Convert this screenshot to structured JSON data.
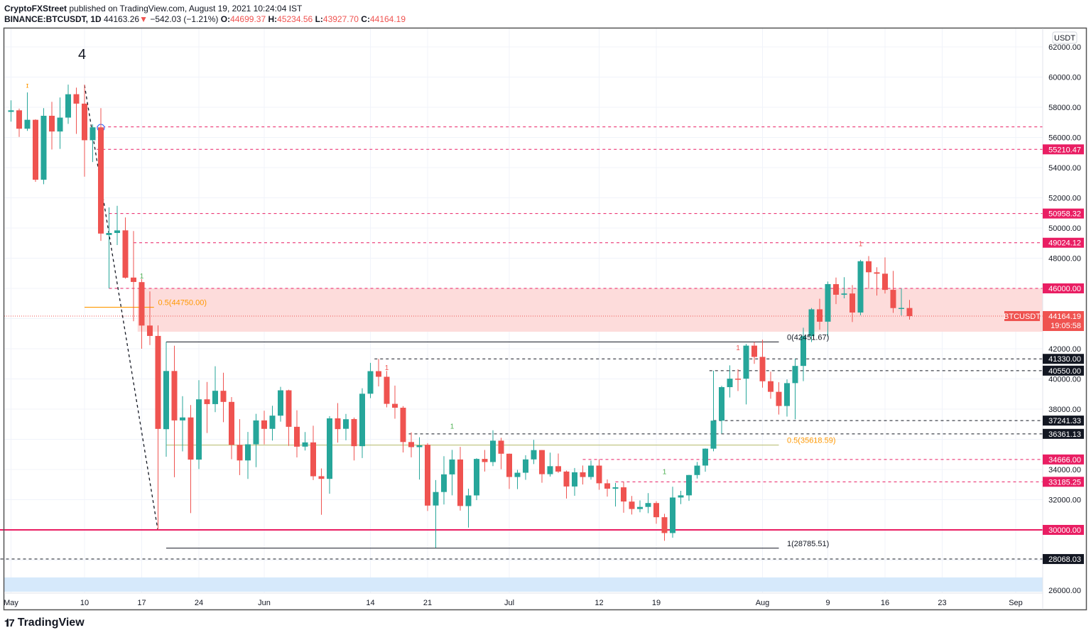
{
  "header": {
    "publisher": "CryptoFXStreet",
    "published_text": "published on TradingView.com, August 19, 2021 10:24:04 IST",
    "symbol": "BINANCE:BTCUSDT, 1D",
    "last": "44163.26",
    "change_arrow": "▼",
    "change": "−542.03 (−1.21%)",
    "o_label": "O:",
    "o": "44699.37",
    "h_label": "H:",
    "h": "45234.56",
    "l_label": "L:",
    "l": "43927.70",
    "c_label": "C:",
    "c": "44164.19"
  },
  "footer": {
    "brand": "TradingView"
  },
  "colors": {
    "up": "#26a69a",
    "down": "#ef5350",
    "level_pink": "#e91e63",
    "level_black": "#131722",
    "zone": "#fddcdb",
    "blue_zone": "#d6e9fb",
    "fib": "#ff9800"
  },
  "chart_data": {
    "type": "candlestick",
    "title": "BINANCE:BTCUSDT, 1D",
    "currency": "USDT",
    "start_date": "2021-04-30",
    "ylim": [
      25500,
      63300
    ],
    "ohlc": [
      [
        53568,
        57963,
        53013,
        57694
      ],
      [
        57694,
        58458,
        57050,
        57797
      ],
      [
        57797,
        57911,
        56035,
        56578
      ],
      [
        56578,
        58981,
        56435,
        57170
      ],
      [
        57169,
        57200,
        53057,
        53200
      ],
      [
        53200,
        57939,
        52900,
        57436
      ],
      [
        57436,
        58360,
        55200,
        56393
      ],
      [
        56393,
        58650,
        55241,
        57314
      ],
      [
        57315,
        59500,
        56900,
        58862
      ],
      [
        58866,
        59300,
        56235,
        58240
      ],
      [
        58240,
        59500,
        53400,
        55816
      ],
      [
        55816,
        56862,
        54370,
        56670
      ],
      [
        56670,
        57939,
        49150,
        49631
      ],
      [
        49537,
        51367,
        46000,
        49670
      ],
      [
        49671,
        51469,
        48870,
        49841
      ],
      [
        49845,
        50700,
        46650,
        46708
      ],
      [
        46716,
        49800,
        43825,
        46426
      ],
      [
        46415,
        46615,
        42001,
        43538
      ],
      [
        43538,
        45800,
        42250,
        42849
      ],
      [
        42850,
        43546,
        30000,
        36690
      ],
      [
        36672,
        42451,
        34850,
        40526
      ],
      [
        40526,
        42200,
        33488,
        37252
      ],
      [
        37253,
        38856,
        35200,
        37449
      ],
      [
        37449,
        38270,
        31111,
        34655
      ],
      [
        34655,
        39920,
        34030,
        38649
      ],
      [
        38649,
        39800,
        36419,
        38333
      ],
      [
        38333,
        40841,
        37800,
        39215
      ],
      [
        39215,
        40411,
        37134,
        38479
      ],
      [
        38479,
        38800,
        34684,
        35633
      ],
      [
        35633,
        37338,
        33632,
        34600
      ],
      [
        34600,
        36488,
        33379,
        35669
      ],
      [
        35669,
        37690,
        34153,
        37252
      ],
      [
        37253,
        37896,
        35666,
        36693
      ],
      [
        36694,
        38225,
        35920,
        37569
      ],
      [
        37568,
        39476,
        37170,
        39246
      ],
      [
        39246,
        39289,
        35567,
        36829
      ],
      [
        36830,
        37925,
        34800,
        35513
      ],
      [
        35516,
        36480,
        35258,
        35796
      ],
      [
        35796,
        36900,
        33300,
        33552
      ],
      [
        33556,
        34068,
        31000,
        33380
      ],
      [
        33380,
        37534,
        32396,
        37388
      ],
      [
        37389,
        38400,
        35782,
        36675
      ],
      [
        36697,
        37680,
        35936,
        37331
      ],
      [
        37340,
        37440,
        34600,
        35546
      ],
      [
        35546,
        39380,
        34757,
        39020
      ],
      [
        39020,
        41064,
        38730,
        40516
      ],
      [
        40516,
        41330,
        39506,
        40144
      ],
      [
        40143,
        40527,
        38116,
        38349
      ],
      [
        38349,
        39560,
        37365,
        38092
      ],
      [
        38092,
        38202,
        35129,
        35820
      ],
      [
        35820,
        36457,
        34803,
        35483
      ],
      [
        35483,
        36137,
        33336,
        35600
      ],
      [
        35641,
        35750,
        31251,
        31608
      ],
      [
        31614,
        33298,
        28805,
        32509
      ],
      [
        32509,
        34881,
        31683,
        33678
      ],
      [
        33675,
        35298,
        32286,
        34663
      ],
      [
        34663,
        35500,
        31275,
        31584
      ],
      [
        31576,
        32730,
        30151,
        32283
      ],
      [
        32283,
        34749,
        31973,
        34700
      ],
      [
        34702,
        35297,
        33862,
        34494
      ],
      [
        34494,
        36600,
        34225,
        35911
      ],
      [
        35911,
        36100,
        34017,
        35045
      ],
      [
        35045,
        35057,
        32711,
        33504
      ],
      [
        33502,
        33977,
        32699,
        33786
      ],
      [
        33786,
        34945,
        33316,
        34669
      ],
      [
        34669,
        35967,
        34357,
        35286
      ],
      [
        35288,
        35293,
        33125,
        33690
      ],
      [
        33690,
        35118,
        33532,
        34220
      ],
      [
        34220,
        35059,
        33777,
        33862
      ],
      [
        33863,
        33929,
        32077,
        32875
      ],
      [
        32875,
        34100,
        32261,
        33815
      ],
      [
        33816,
        34262,
        33004,
        33502
      ],
      [
        33503,
        34592,
        33332,
        34259
      ],
      [
        34259,
        34679,
        32658,
        33086
      ],
      [
        33086,
        33340,
        32203,
        32730
      ],
      [
        32729,
        33114,
        31550,
        32820
      ],
      [
        32820,
        33185,
        31133,
        31880
      ],
      [
        31874,
        32249,
        31020,
        31383
      ],
      [
        31383,
        31955,
        31164,
        31520
      ],
      [
        31521,
        32435,
        31108,
        31778
      ],
      [
        31778,
        31899,
        30407,
        30839
      ],
      [
        30839,
        31063,
        29278,
        29790
      ],
      [
        29790,
        32859,
        29482,
        32144
      ],
      [
        32144,
        32591,
        31708,
        32287
      ],
      [
        32287,
        33650,
        31924,
        33634
      ],
      [
        33634,
        34500,
        33401,
        34258
      ],
      [
        34261,
        35398,
        33851,
        35381
      ],
      [
        35381,
        40550,
        35205,
        37237
      ],
      [
        37241,
        39542,
        36383,
        39457
      ],
      [
        39456,
        40900,
        38772,
        40019
      ],
      [
        40019,
        40640,
        39200,
        40016
      ],
      [
        40018,
        42316,
        38313,
        42206
      ],
      [
        42206,
        42448,
        41000,
        41461
      ],
      [
        41461,
        42599,
        39422,
        39846
      ],
      [
        39850,
        40480,
        38690,
        39147
      ],
      [
        39146,
        39780,
        37642,
        38207
      ],
      [
        38207,
        39969,
        37508,
        39723
      ],
      [
        39723,
        41350,
        37332,
        40862
      ],
      [
        40862,
        43392,
        39853,
        42836
      ],
      [
        42836,
        44700,
        42446,
        44614
      ],
      [
        44614,
        45310,
        43261,
        43792
      ],
      [
        43794,
        46454,
        42779,
        46284
      ],
      [
        46280,
        46718,
        44961,
        45579
      ],
      [
        45579,
        46743,
        45341,
        45661
      ],
      [
        45661,
        46218,
        43770,
        44400
      ],
      [
        44400,
        47886,
        44217,
        47800
      ],
      [
        47799,
        48144,
        45971,
        47068
      ],
      [
        47064,
        47400,
        45525,
        46973
      ],
      [
        46973,
        48053,
        45660,
        45901
      ],
      [
        45902,
        47160,
        44376,
        44695
      ],
      [
        44695,
        46000,
        44200,
        44705
      ],
      [
        44699,
        45234,
        43927,
        44164
      ]
    ],
    "price_ticks": [
      "62000.00",
      "60000.00",
      "58000.00",
      "56000.00",
      "54000.00",
      "52000.00",
      "50000.00",
      "48000.00",
      "42000.00",
      "40000.00",
      "38000.00",
      "34000.00",
      "32000.00",
      "26000.00"
    ],
    "time_ticks": [
      {
        "label": "May",
        "day": 1
      },
      {
        "label": "10",
        "day": 10
      },
      {
        "label": "17",
        "day": 17
      },
      {
        "label": "24",
        "day": 24
      },
      {
        "label": "Jun",
        "day": 32
      },
      {
        "label": "14",
        "day": 45
      },
      {
        "label": "21",
        "day": 52
      },
      {
        "label": "Jul",
        "day": 62
      },
      {
        "label": "12",
        "day": 73
      },
      {
        "label": "19",
        "day": 80
      },
      {
        "label": "Aug",
        "day": 93
      },
      {
        "label": "9",
        "day": 101
      },
      {
        "label": "16",
        "day": 108
      },
      {
        "label": "23",
        "day": 115
      },
      {
        "label": "Sep",
        "day": 124
      }
    ],
    "levels": [
      {
        "price": 56700,
        "style": "pink",
        "from_day": 11.5,
        "label": null
      },
      {
        "price": 55210.47,
        "style": "pink",
        "from_day": 11.5,
        "label": "55210.47"
      },
      {
        "price": 50958.32,
        "style": "pink",
        "from_day": 13,
        "label": "50958.32"
      },
      {
        "price": 49024.12,
        "style": "pink",
        "from_day": 16,
        "label": "49024.12"
      },
      {
        "price": 46000,
        "style": "pink",
        "from_day": 13,
        "label": "46000.00"
      },
      {
        "price": 41330,
        "style": "black",
        "from_day": 45.5,
        "label": "41330.00"
      },
      {
        "price": 40550,
        "style": "black",
        "from_day": 86.5,
        "label": "40550.00"
      },
      {
        "price": 37241.33,
        "style": "black",
        "from_day": 87,
        "label": "37241.33"
      },
      {
        "price": 36361.13,
        "style": "black",
        "from_day": 49,
        "label": "36361.13"
      },
      {
        "price": 34666,
        "style": "pink",
        "from_day": 71,
        "label": "34666.00"
      },
      {
        "price": 33185.25,
        "style": "pink",
        "from_day": 75,
        "label": "33185.25"
      },
      {
        "price": 30000,
        "style": "pink-solid",
        "from_day": -1,
        "label": "30000.00"
      },
      {
        "price": 28068.03,
        "style": "black",
        "from_day": -1,
        "label": "28068.03"
      }
    ],
    "current_price": {
      "symbol": "BTCUSDT",
      "price": 44164.19,
      "label": "44164.19",
      "countdown": "19:05:58"
    },
    "zone": {
      "top": 46000,
      "bottom": 43130
    },
    "blue_zone": {
      "top": 26850,
      "bottom": 25900
    },
    "fib_labels": [
      {
        "text": "0(42451.67)",
        "price": 42451.67
      },
      {
        "text": "0.5(35618.59)",
        "price": 35618.59
      },
      {
        "text": "1(28785.51)",
        "price": 28785.51
      },
      {
        "text": "0.5(44750.00)",
        "price": 44750
      }
    ],
    "wave_label": "4",
    "td_markers": [
      {
        "day": 3,
        "text": "ɪ",
        "color": "#ff9800",
        "price": 59300
      },
      {
        "day": 17,
        "text": "1",
        "color": "#4caf50",
        "price": 46650
      },
      {
        "day": 47,
        "text": "1",
        "color": "#ef5350",
        "price": 40600
      },
      {
        "day": 55,
        "text": "1",
        "color": "#4caf50",
        "price": 36700
      },
      {
        "day": 81,
        "text": "1",
        "color": "#4caf50",
        "price": 33700
      },
      {
        "day": 90,
        "text": "1",
        "color": "#ef5350",
        "price": 41900
      },
      {
        "day": 105,
        "text": "1",
        "color": "#ef5350",
        "price": 48800
      }
    ]
  }
}
